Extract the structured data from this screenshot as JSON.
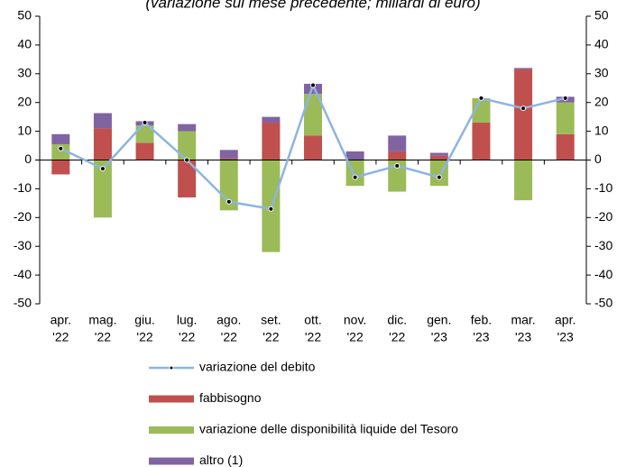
{
  "chart_data": {
    "type": "bar",
    "title": "(variazione sul mese precedente; miliardi di euro)",
    "categories": [
      [
        "apr.",
        "'22"
      ],
      [
        "mag.",
        "'22"
      ],
      [
        "giu.",
        "'22"
      ],
      [
        "lug.",
        "'22"
      ],
      [
        "ago.",
        "'22"
      ],
      [
        "set.",
        "'22"
      ],
      [
        "ott.",
        "'22"
      ],
      [
        "nov.",
        "'22"
      ],
      [
        "dic.",
        "'22"
      ],
      [
        "gen.",
        "'23"
      ],
      [
        "feb.",
        "'23"
      ],
      [
        "mar.",
        "'23"
      ],
      [
        "apr.",
        "'23"
      ]
    ],
    "series": [
      {
        "name": "variazione del debito",
        "type": "line",
        "color": "#8db4e2",
        "values": [
          4,
          -3,
          13,
          0,
          -14.5,
          -17,
          26,
          -6,
          -2,
          -6,
          21.5,
          18,
          21.5
        ]
      },
      {
        "name": "fabbisogno",
        "color": "#c0504d",
        "values": [
          -5,
          11,
          6,
          -13,
          0.5,
          13,
          8.5,
          0,
          3,
          1.5,
          13,
          31.5,
          9
        ]
      },
      {
        "name": "variazione delle disponibilità liquide del Tesoro",
        "color": "#9bbb59",
        "values": [
          5.5,
          -20,
          6,
          10,
          -17.5,
          -32,
          14.5,
          -9,
          -11,
          -9,
          8.5,
          -14,
          11
        ]
      },
      {
        "name": "altro (1)",
        "color": "#8064a2",
        "values": [
          3.5,
          5.3,
          1.5,
          2.5,
          3,
          2,
          3.5,
          3,
          5.5,
          1,
          0,
          0.5,
          2
        ]
      }
    ],
    "ylim": [
      -50,
      50
    ],
    "yticks": [
      -50,
      -40,
      -30,
      -20,
      -10,
      0,
      10,
      20,
      30,
      40,
      50
    ],
    "y2lim": [
      -50,
      50
    ],
    "y2ticks": [
      -50,
      -40,
      -30,
      -20,
      -10,
      0,
      10,
      20,
      30,
      40,
      50
    ]
  }
}
